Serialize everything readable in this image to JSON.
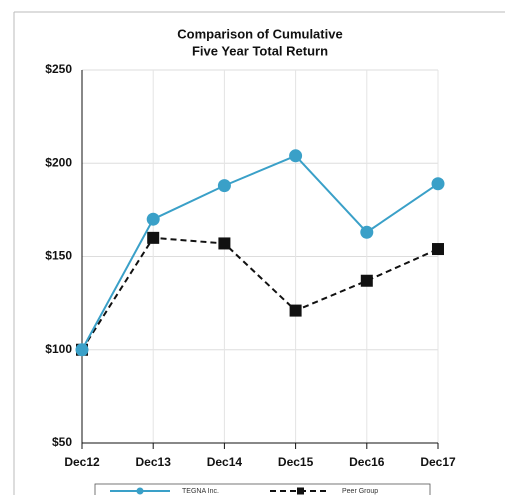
{
  "chart_data": {
    "type": "line",
    "title": [
      "Comparison of Cumulative",
      "Five Year Total Return"
    ],
    "categories": [
      "Dec12",
      "Dec13",
      "Dec14",
      "Dec15",
      "Dec16",
      "Dec17"
    ],
    "series": [
      {
        "name": "TEGNA Inc.",
        "color": "#3aa0c8",
        "values": [
          100,
          170,
          188,
          204,
          163,
          189
        ]
      },
      {
        "name": "Peer Group",
        "color": "#111111",
        "values": [
          100,
          160,
          157,
          121,
          137,
          154
        ]
      }
    ],
    "ylim": [
      50,
      250
    ],
    "yticks": [
      {
        "value": 50,
        "label": "$50"
      },
      {
        "value": 100,
        "label": "$100"
      },
      {
        "value": 150,
        "label": "$150"
      },
      {
        "value": 200,
        "label": "$200"
      },
      {
        "value": 250,
        "label": "$250"
      }
    ],
    "grid": true,
    "legend": "bottom"
  }
}
